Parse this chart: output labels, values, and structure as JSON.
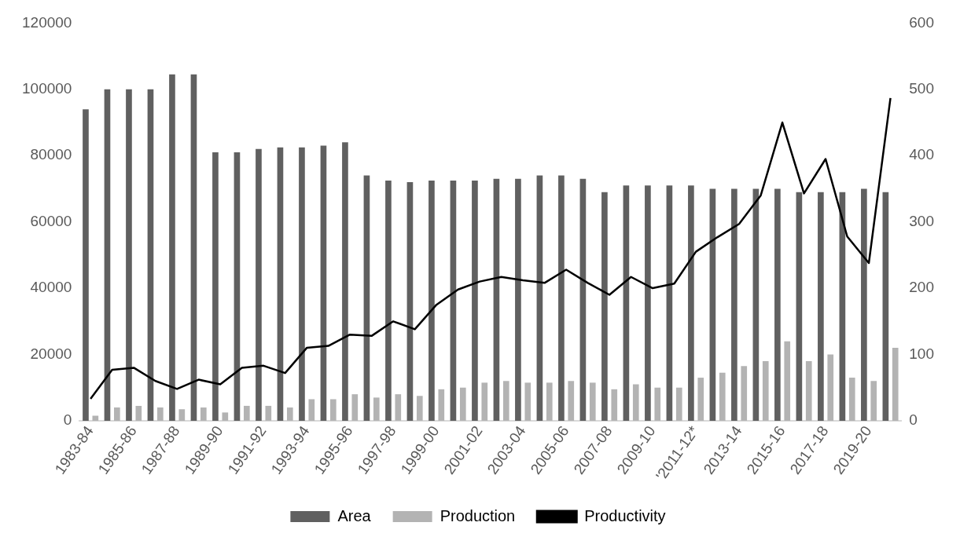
{
  "chart_data": {
    "type": "bar",
    "categories": [
      "1983-84",
      null,
      "1985-86",
      null,
      "1987-88",
      null,
      "1989-90",
      null,
      "1991-92",
      null,
      "1993-94",
      null,
      "1995-96",
      null,
      "1997-98",
      null,
      "1999-00",
      null,
      "2001-02",
      null,
      "2003-04",
      null,
      "2005-06",
      null,
      "2007-08",
      null,
      "2009-10",
      null,
      "'2011-12*",
      null,
      "2013-14",
      null,
      "2015-16",
      null,
      "2017-18",
      null,
      "2019-20",
      null
    ],
    "series": [
      {
        "name": "Area",
        "color": "#606060",
        "values": [
          94000,
          100000,
          100000,
          100000,
          104500,
          104500,
          81000,
          81000,
          82000,
          82500,
          82500,
          83000,
          84000,
          74000,
          72500,
          72000,
          72500,
          72500,
          72500,
          73000,
          73000,
          74000,
          74000,
          73000,
          69000,
          71000,
          71000,
          71000,
          71000,
          70000,
          70000,
          70000,
          70000,
          69000,
          69000,
          69000,
          70000,
          69000
        ]
      },
      {
        "name": "Production",
        "color": "#b3b3b3",
        "values": [
          1500,
          4000,
          4500,
          4000,
          3500,
          4000,
          2500,
          4500,
          4500,
          4000,
          6500,
          6500,
          8000,
          7000,
          8000,
          7500,
          9500,
          10000,
          11500,
          12000,
          11500,
          11500,
          12000,
          11500,
          9500,
          11000,
          10000,
          10000,
          13000,
          14500,
          16500,
          18000,
          24000,
          18000,
          20000,
          13000,
          12000,
          22000
        ]
      },
      {
        "name": "Productivity",
        "type": "line",
        "axis": "y2",
        "color": "#000000",
        "values": [
          33,
          77,
          80,
          60,
          48,
          62,
          55,
          80,
          83,
          72,
          110,
          113,
          130,
          128,
          150,
          138,
          175,
          198,
          210,
          217,
          212,
          208,
          228,
          208,
          190,
          217,
          200,
          207,
          255,
          277,
          297,
          340,
          450,
          343,
          395,
          278,
          238,
          487
        ]
      }
    ],
    "ylim": [
      0,
      120000
    ],
    "yticks": [
      0,
      20000,
      40000,
      60000,
      80000,
      100000,
      120000
    ],
    "y2lim": [
      0,
      600
    ],
    "y2ticks": [
      0,
      100,
      200,
      300,
      400,
      500,
      600
    ],
    "grid": false,
    "legend": "bottom",
    "marker": "none",
    "line_style": "solid"
  }
}
